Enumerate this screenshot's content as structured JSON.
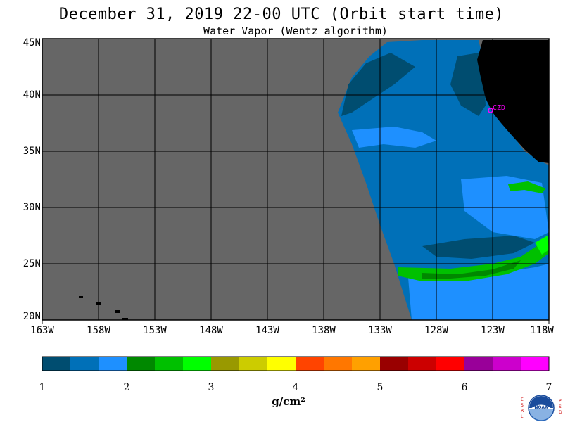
{
  "header": {
    "title": "December 31, 2019  22-00 UTC  (Orbit start time)",
    "subtitle": "Water Vapor (Wentz algorithm)"
  },
  "map": {
    "lat_labels": [
      "45N",
      "40N",
      "35N",
      "30N",
      "25N",
      "20N"
    ],
    "lon_labels": [
      "163W",
      "158W",
      "153W",
      "148W",
      "143W",
      "138W",
      "133W",
      "128W",
      "123W",
      "118W"
    ],
    "annotation": "CZD",
    "colors": {
      "no_data": "#666666",
      "land": "#000000",
      "grid": "#000000",
      "annotation": "#ff00ff"
    }
  },
  "colorbar": {
    "colors": [
      "#004d70",
      "#0070b8",
      "#1e90ff",
      "#008800",
      "#00c000",
      "#00ff00",
      "#999900",
      "#cccc00",
      "#ffff00",
      "#ff4400",
      "#ff7700",
      "#ffa000",
      "#990000",
      "#cc0000",
      "#ff0000",
      "#990099",
      "#cc00cc",
      "#ff00ff"
    ],
    "ticks": [
      "1",
      "2",
      "3",
      "4",
      "5",
      "6",
      "7"
    ],
    "units": "g/cm²"
  },
  "logo": {
    "name": "noaa-logo",
    "side_left": "ESRL",
    "side_right": "PSD",
    "center": "NOAA"
  }
}
